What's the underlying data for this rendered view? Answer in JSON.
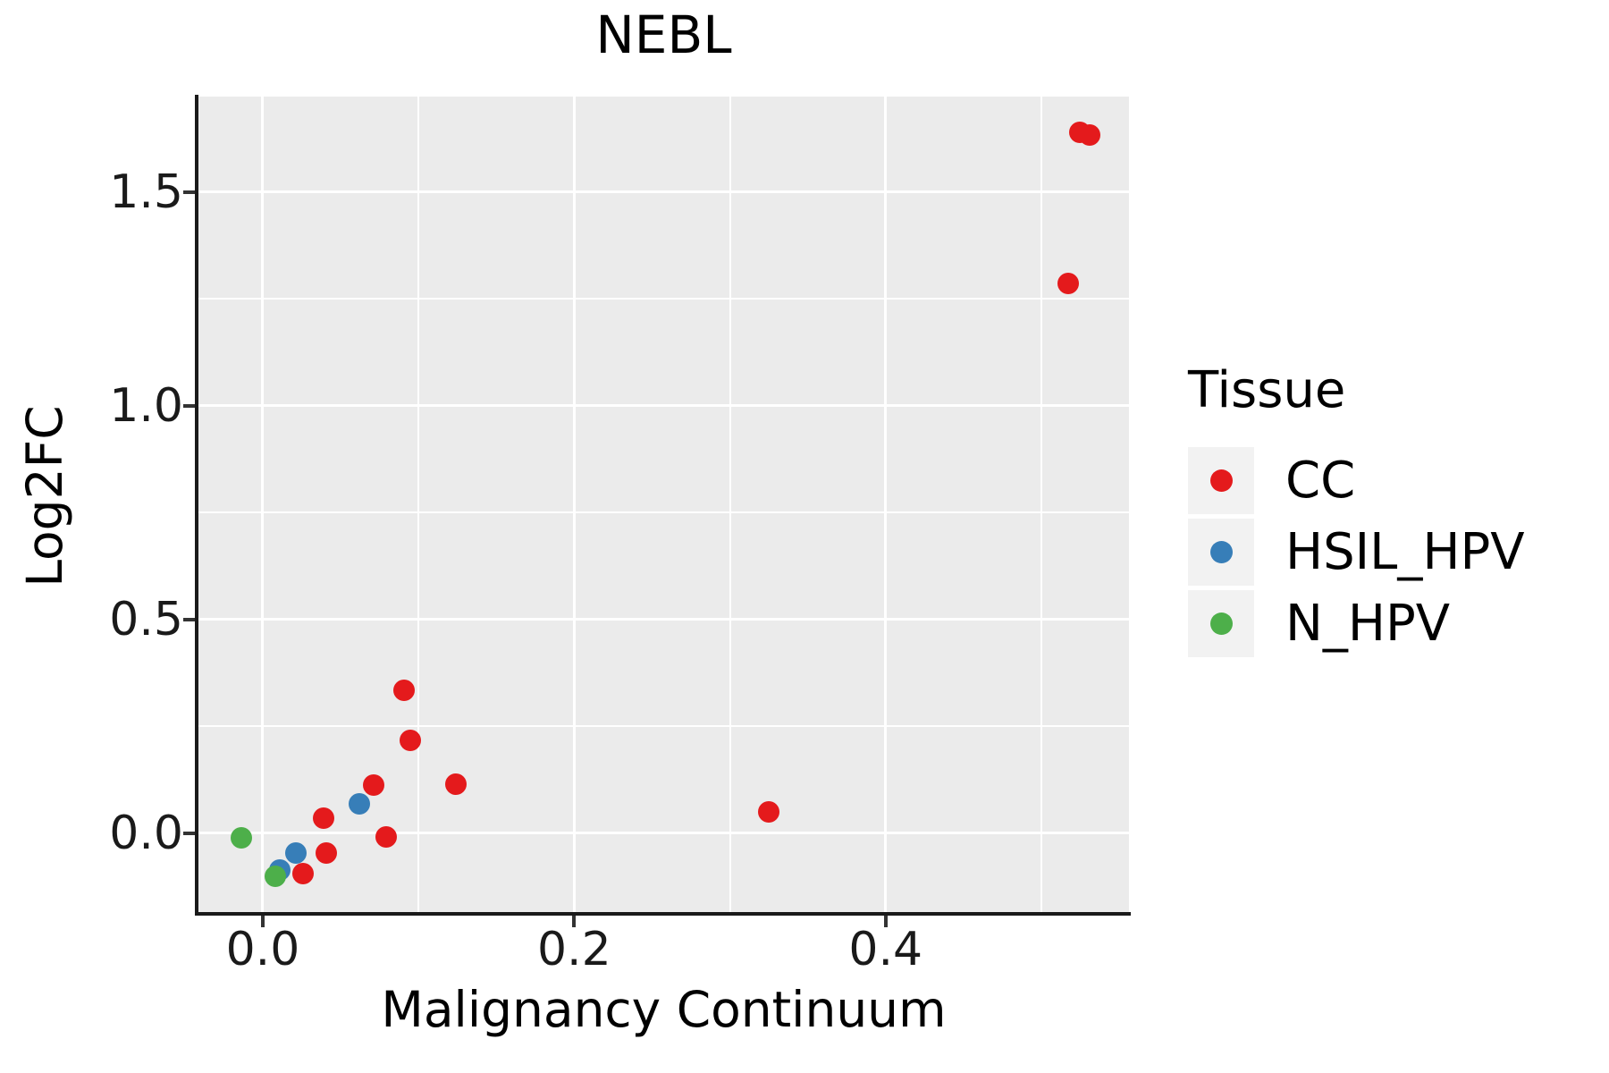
{
  "title": "NEBL",
  "axes": {
    "x": {
      "label": "Malignancy Continuum",
      "range": [
        -0.0413,
        0.5563
      ],
      "major_ticks": [
        0.0,
        0.2,
        0.4
      ],
      "tick_labels": [
        "0.0",
        "0.2",
        "0.4"
      ],
      "minor_gridlines": [
        0.1,
        0.3,
        0.5
      ]
    },
    "y": {
      "label": "Log2FC",
      "range": [
        -0.1841,
        1.7238
      ],
      "major_ticks": [
        0.0,
        0.5,
        1.0,
        1.5
      ],
      "tick_labels": [
        "0.0",
        "0.5",
        "1.0",
        "1.5"
      ],
      "minor_gridlines": [
        0.25,
        0.75,
        1.25
      ]
    }
  },
  "legend": {
    "title": "Tissue",
    "entries": [
      {
        "label": "CC",
        "color": "#e41a1c"
      },
      {
        "label": "HSIL_HPV",
        "color": "#377eb8"
      },
      {
        "label": "N_HPV",
        "color": "#4daf4a"
      }
    ]
  },
  "colors": {
    "plot_background": "#ebebeb",
    "gridline": "#ffffff",
    "axis": "#1a1a1a",
    "legend_key_background": "#f2f2f2"
  },
  "chart_data": {
    "type": "scatter",
    "title": "NEBL",
    "xlabel": "Malignancy Continuum",
    "ylabel": "Log2FC",
    "xlim": [
      -0.0413,
      0.5563
    ],
    "ylim": [
      -0.1841,
      1.7238
    ],
    "grid": "major-and-minor",
    "legend_position": "right",
    "series": [
      {
        "name": "CC",
        "color": "#e41a1c",
        "points": [
          [
            0.525,
            1.64
          ],
          [
            0.531,
            1.633
          ],
          [
            0.517,
            1.287
          ],
          [
            0.325,
            0.05
          ],
          [
            0.091,
            0.335
          ],
          [
            0.095,
            0.217
          ],
          [
            0.124,
            0.116
          ],
          [
            0.071,
            0.114
          ],
          [
            0.039,
            0.035
          ],
          [
            0.079,
            -0.008
          ],
          [
            0.041,
            -0.046
          ],
          [
            0.026,
            -0.095
          ]
        ]
      },
      {
        "name": "HSIL_HPV",
        "color": "#377eb8",
        "points": [
          [
            0.062,
            0.068
          ],
          [
            0.021,
            -0.045
          ],
          [
            0.011,
            -0.085
          ]
        ]
      },
      {
        "name": "N_HPV",
        "color": "#4daf4a",
        "points": [
          [
            -0.014,
            -0.01
          ],
          [
            0.008,
            -0.1
          ]
        ]
      }
    ]
  }
}
